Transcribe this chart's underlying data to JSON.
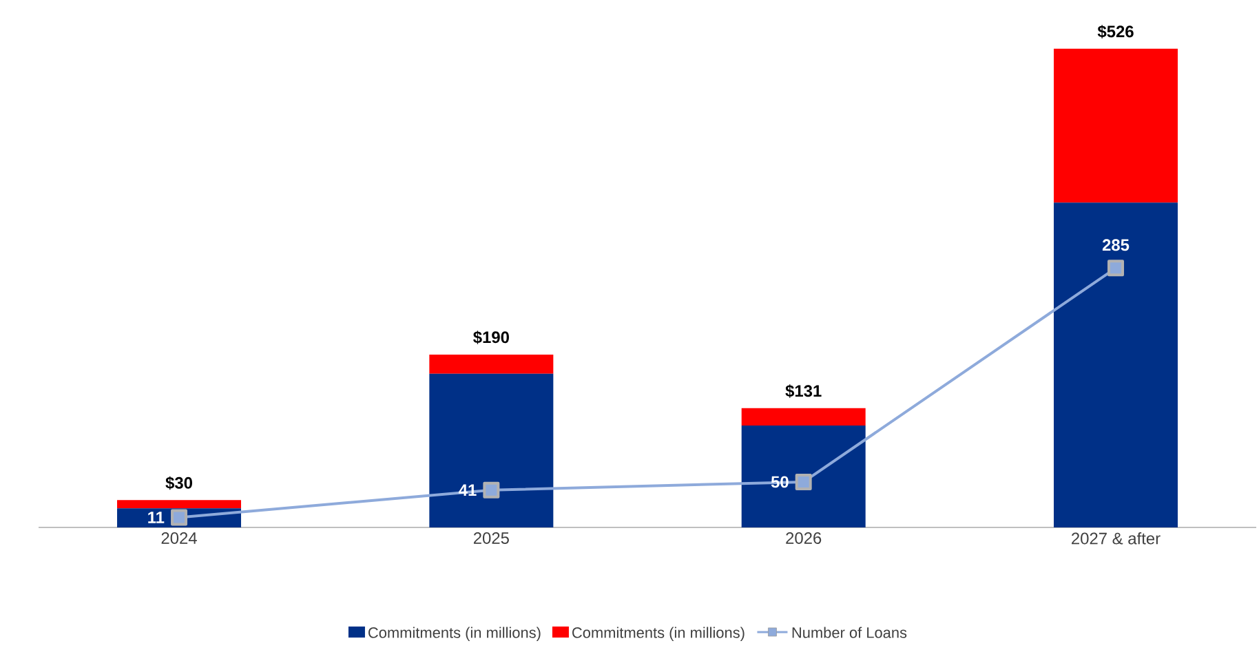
{
  "chart_data": {
    "type": "bar",
    "stacked": true,
    "tick_labels": "x",
    "legend": "bottom",
    "categories": [
      "2024",
      "2025",
      "2026",
      "2027 & after"
    ],
    "series": [
      {
        "name": "Commitments (in millions)",
        "color": "#003087",
        "values": [
          21,
          169,
          112,
          357
        ]
      },
      {
        "name": "Commitments (in millions)",
        "color": "#ff0000",
        "values": [
          9,
          21,
          19,
          169
        ]
      },
      {
        "name": "Number of Loans",
        "type": "line",
        "color": "#8eaadb",
        "marker": "square",
        "line_style": "solid",
        "values": [
          11,
          41,
          50,
          285
        ],
        "value_labels": [
          "11",
          "41",
          "50",
          "285"
        ]
      }
    ],
    "totals": [
      "$30",
      "$190",
      "$131",
      "$526"
    ]
  }
}
